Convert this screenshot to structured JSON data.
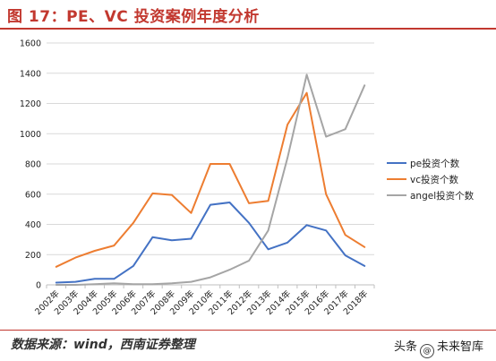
{
  "header": {
    "figure_title": "图 17：PE、VC 投资案例年度分析"
  },
  "footer": {
    "source": "数据来源：wind，西南证券整理",
    "watermark_prefix": "头条",
    "watermark_name": "未来智库"
  },
  "chart_data": {
    "type": "line",
    "title": "",
    "xlabel": "",
    "ylabel": "",
    "ylim": [
      0,
      1600
    ],
    "yticks": [
      0,
      200,
      400,
      600,
      800,
      1000,
      1200,
      1400,
      1600
    ],
    "grid": "horizontal",
    "legend_position": "right",
    "categories": [
      "2002年",
      "2003年",
      "2004年",
      "2005年",
      "2006年",
      "2007年",
      "2008年",
      "2009年",
      "2010年",
      "2011年",
      "2012年",
      "2013年",
      "2014年",
      "2015年",
      "2016年",
      "2017年",
      "2018年"
    ],
    "series": [
      {
        "name": "pe投资个数",
        "color": "#4472c4",
        "values": [
          15,
          20,
          40,
          40,
          125,
          315,
          295,
          305,
          530,
          545,
          410,
          235,
          280,
          395,
          360,
          195,
          125
        ]
      },
      {
        "name": "vc投资个数",
        "color": "#ed7d31",
        "values": [
          120,
          180,
          225,
          260,
          410,
          605,
          595,
          475,
          800,
          800,
          540,
          555,
          1060,
          1270,
          600,
          330,
          250
        ]
      },
      {
        "name": "angel投资个数",
        "color": "#a5a5a5",
        "values": [
          0,
          0,
          5,
          10,
          5,
          5,
          10,
          20,
          50,
          100,
          160,
          360,
          840,
          1390,
          980,
          1030,
          1320
        ]
      }
    ]
  }
}
